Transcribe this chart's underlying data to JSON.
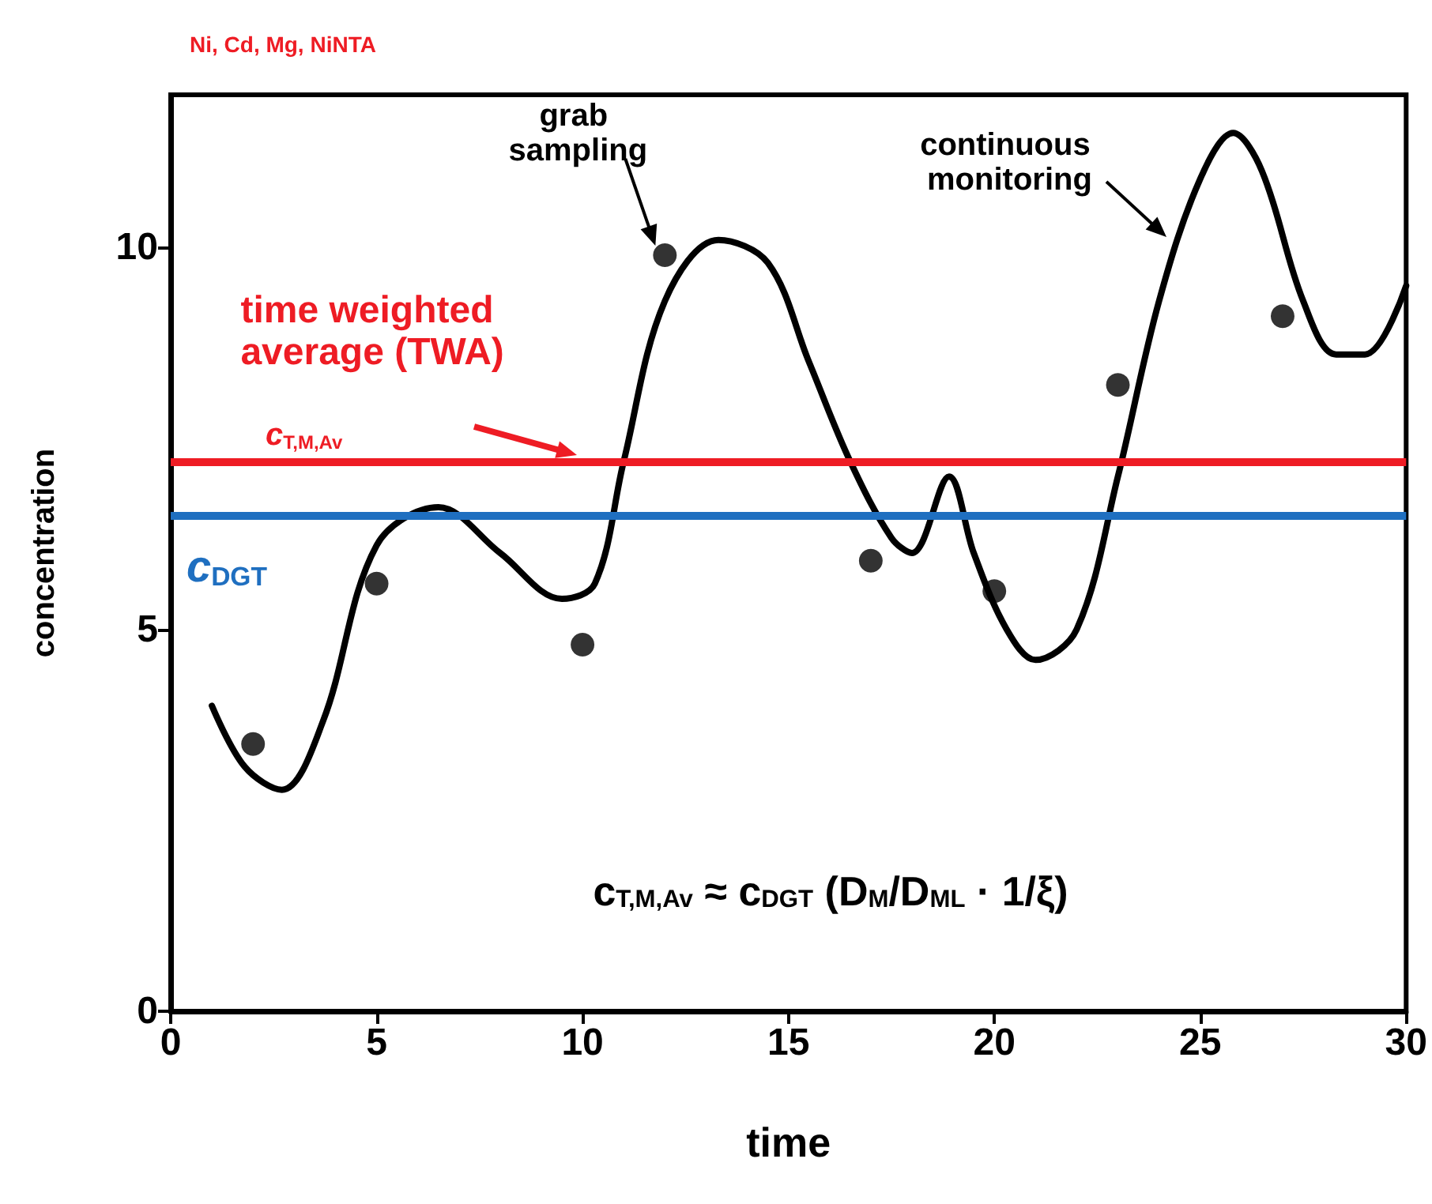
{
  "chart_data": {
    "type": "line",
    "title": "Ni, Cd, Mg, NiNTA",
    "xlabel": "time",
    "ylabel": "concentration",
    "xlim": [
      0,
      30
    ],
    "xticks": [
      0,
      5,
      10,
      15,
      20,
      25,
      30
    ],
    "ylim": [
      0,
      12
    ],
    "yticks": [
      0,
      5,
      10
    ],
    "grid": false,
    "series": [
      {
        "color": "#000000",
        "marker": "none",
        "x": [
          1,
          1.8,
          2.7,
          3.7,
          5,
          6.5,
          8,
          9.5,
          10.3,
          11,
          12,
          13.3,
          14.5,
          15.5,
          16.5,
          17.5,
          18,
          18.9,
          19.5,
          20.3,
          21,
          22,
          23,
          24,
          25,
          25.8,
          26.5,
          27.5,
          28.3,
          29,
          30
        ],
        "values": [
          4.0,
          3.2,
          2.9,
          3.8,
          6.1,
          6.6,
          6.0,
          5.4,
          5.6,
          7.2,
          9.3,
          10.1,
          9.8,
          8.5,
          7.2,
          6.2,
          6.0,
          7.0,
          6.0,
          5.0,
          4.6,
          5.0,
          7.0,
          9.3,
          10.9,
          11.5,
          11.0,
          9.3,
          8.6,
          8.6,
          9.5
        ]
      },
      {
        "type": "scatter",
        "color": "#000000",
        "marker": "circle",
        "x": [
          2,
          5,
          10,
          12,
          17,
          20,
          23,
          27
        ],
        "values": [
          3.5,
          5.6,
          4.8,
          9.9,
          5.9,
          5.5,
          8.2,
          9.1
        ]
      }
    ],
    "ref_lines": [
      {
        "axis": "y",
        "value": 7.2,
        "label": "c$_{T,M,Av}$",
        "color": "#ee1c24"
      },
      {
        "axis": "y",
        "value": 6.5,
        "label": "c$_{DGT}$",
        "color": "#1f6fc0"
      }
    ],
    "annotations": [
      {
        "text": "grab sampling",
        "x": 12,
        "y": 9.9
      },
      "continuous monitoring",
      "time weighted average (TWA)",
      "c$_{T,M,Av}$ ≈ c$_{DGT}$ (D$_{M}$/D$_{ML}$ · 1/ξ)"
    ]
  }
}
